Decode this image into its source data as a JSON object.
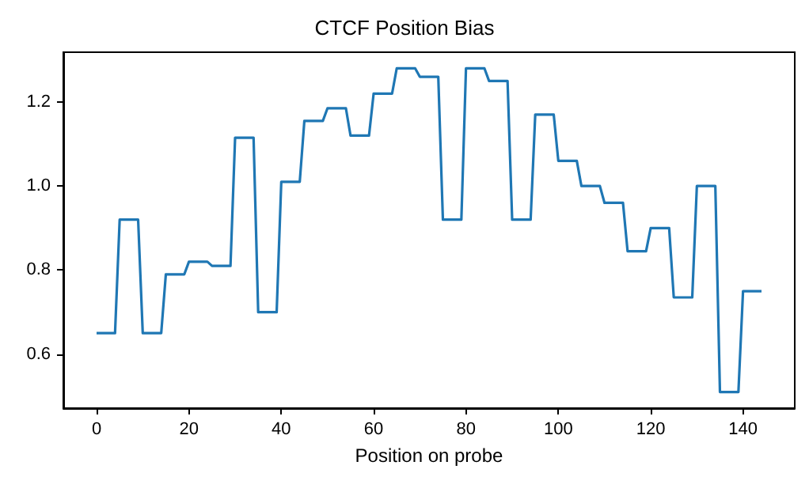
{
  "chart_data": {
    "type": "line",
    "title": "CTCF Position Bias",
    "xlabel": "Position on probe",
    "series": [
      {
        "color": "#1f77b4",
        "x": [
          0,
          4,
          5,
          9,
          10,
          14,
          15,
          19,
          20,
          24,
          25,
          29,
          30,
          34,
          35,
          39,
          40,
          44,
          45,
          49,
          50,
          54,
          55,
          59,
          60,
          64,
          65,
          69,
          70,
          74,
          75,
          79,
          80,
          84,
          85,
          89,
          90,
          94,
          95,
          99,
          100,
          104,
          105,
          109,
          110,
          114,
          115,
          119,
          120,
          124,
          125,
          129,
          130,
          134,
          135,
          139,
          140,
          144
        ],
        "values": [
          0.65,
          0.65,
          0.92,
          0.92,
          0.65,
          0.65,
          0.79,
          0.79,
          0.82,
          0.82,
          0.81,
          0.81,
          1.115,
          1.115,
          0.7,
          0.7,
          1.01,
          1.01,
          1.155,
          1.155,
          1.185,
          1.185,
          1.12,
          1.12,
          1.22,
          1.22,
          1.28,
          1.28,
          1.26,
          1.26,
          0.92,
          0.92,
          1.28,
          1.28,
          1.25,
          1.25,
          0.92,
          0.92,
          1.17,
          1.17,
          1.06,
          1.06,
          1.0,
          1.0,
          0.96,
          0.96,
          0.845,
          0.845,
          0.9,
          0.9,
          0.735,
          0.735,
          1.0,
          1.0,
          0.51,
          0.51,
          0.75,
          0.75
        ]
      }
    ],
    "xlim": [
      -7.2,
      151.2
    ],
    "xticks": [
      0,
      20,
      40,
      60,
      80,
      100,
      120,
      140
    ],
    "ylim": [
      0.4715,
      1.3185
    ],
    "yticks": [
      0.6,
      0.8,
      {
        "value": 1,
        "label": "1.0"
      },
      1.2
    ],
    "grid": false,
    "marker": "none",
    "line_style": "solid"
  }
}
